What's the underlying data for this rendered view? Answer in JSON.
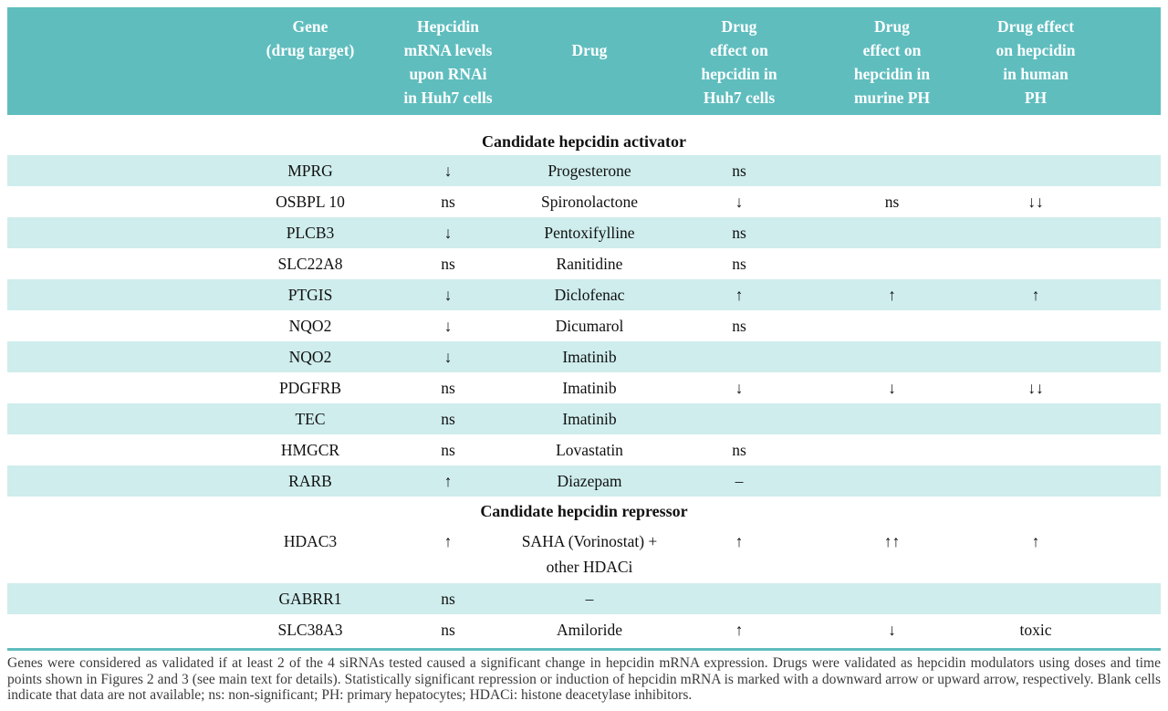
{
  "colors": {
    "header_teal": "#5fbdbe",
    "row_teal": "#cfeded",
    "text": "#111111",
    "footnote_text": "#3a3a3a"
  },
  "table": {
    "columns": [
      {
        "key": "gene",
        "label": "Gene\n(drug target)"
      },
      {
        "key": "rnai",
        "label": "Hepcidin\nmRNA levels\nupon RNAi\nin Huh7 cells"
      },
      {
        "key": "drug",
        "label": "Drug"
      },
      {
        "key": "huh7",
        "label": "Drug\neffect on\nhepcidin in\nHuh7 cells"
      },
      {
        "key": "murine",
        "label": "Drug\neffect on\nhepcidin in\nmurine PH"
      },
      {
        "key": "human",
        "label": "Drug effect\non hepcidin\nin human\nPH"
      }
    ],
    "sections": [
      {
        "title": "Candidate hepcidin activator",
        "rows": [
          {
            "gene": "MPRG",
            "rnai": "↓",
            "drug": "Progesterone",
            "huh7": "ns",
            "murine": "",
            "human": ""
          },
          {
            "gene": "OSBPL 10",
            "rnai": "ns",
            "drug": "Spironolactone",
            "huh7": "↓",
            "murine": "ns",
            "human": "↓↓"
          },
          {
            "gene": "PLCB3",
            "rnai": "↓",
            "drug": "Pentoxifylline",
            "huh7": "ns",
            "murine": "",
            "human": ""
          },
          {
            "gene": "SLC22A8",
            "rnai": "ns",
            "drug": "Ranitidine",
            "huh7": "ns",
            "murine": "",
            "human": ""
          },
          {
            "gene": "PTGIS",
            "rnai": "↓",
            "drug": "Diclofenac",
            "huh7": "↑",
            "murine": "↑",
            "human": "↑"
          },
          {
            "gene": "NQO2",
            "rnai": "↓",
            "drug": "Dicumarol",
            "huh7": "ns",
            "murine": "",
            "human": ""
          },
          {
            "gene": "NQO2",
            "rnai": "↓",
            "drug": "Imatinib",
            "huh7": "",
            "murine": "",
            "human": ""
          },
          {
            "gene": "PDGFRB",
            "rnai": "ns",
            "drug": "Imatinib",
            "huh7": "↓",
            "murine": "↓",
            "human": "↓↓"
          },
          {
            "gene": "TEC",
            "rnai": "ns",
            "drug": "Imatinib",
            "huh7": "",
            "murine": "",
            "human": ""
          },
          {
            "gene": "HMGCR",
            "rnai": "ns",
            "drug": "Lovastatin",
            "huh7": "ns",
            "murine": "",
            "human": ""
          },
          {
            "gene": "RARB",
            "rnai": "↑",
            "drug": "Diazepam",
            "huh7": "–",
            "murine": "",
            "human": ""
          }
        ]
      },
      {
        "title": "Candidate hepcidin repressor",
        "rows": [
          {
            "gene": "HDAC3",
            "rnai": "↑",
            "drug": "SAHA (Vorinostat) +\nother HDACi",
            "huh7": "↑",
            "murine": "↑↑",
            "human": "↑"
          },
          {
            "gene": "GABRR1",
            "rnai": "ns",
            "drug": "–",
            "huh7": "",
            "murine": "",
            "human": ""
          },
          {
            "gene": "SLC38A3",
            "rnai": "ns",
            "drug": "Amiloride",
            "huh7": "↑",
            "murine": "↓",
            "human": "toxic"
          }
        ]
      }
    ]
  },
  "footnote": "Genes were considered as validated if at least 2 of the 4 siRNAs tested caused a significant change in hepcidin mRNA expression.  Drugs were validated as hepcidin modulators using doses and time points shown in Figures 2 and 3 (see main text for details). Statistically significant repression or induction of hepcidin mRNA is marked with a downward arrow  or upward arrow, respectively. Blank cells indicate that data are not available; ns: non-significant;  PH: primary hepatocytes; HDACi: histone deacetylase inhibitors."
}
